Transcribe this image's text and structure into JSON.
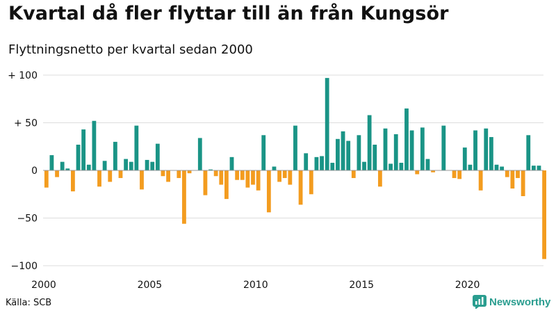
{
  "title": "Kvartal då fler flyttar till än från Kungsör",
  "subtitle": "Flyttningsnetto per kvartal sedan 2000",
  "source": "Källa: SCB",
  "brand": {
    "name": "Newsworthy",
    "icon": "newsworthy-logo-icon"
  },
  "colors": {
    "positive": "#1a9486",
    "negative": "#f39c1f",
    "grid": "#dddddd",
    "zero": "#999999",
    "brand": "#2a9d8f"
  },
  "chart_data": {
    "type": "bar",
    "title": "Kvartal då fler flyttar till än från Kungsör",
    "subtitle": "Flyttningsnetto per kvartal sedan 2000",
    "start_year": 2000,
    "periods_per_year": 4,
    "ylim": [
      -100,
      100
    ],
    "y_ticks": [
      {
        "value": 100,
        "label": "+ 100"
      },
      {
        "value": 50,
        "label": "+  50"
      },
      {
        "value": 0,
        "label": "0"
      },
      {
        "value": -50,
        "label": "−50"
      },
      {
        "value": -100,
        "label": "−100"
      }
    ],
    "x_ticks": [
      {
        "year": 2000,
        "label": "2000"
      },
      {
        "year": 2005,
        "label": "2005"
      },
      {
        "year": 2010,
        "label": "2010"
      },
      {
        "year": 2015,
        "label": "2015"
      },
      {
        "year": 2020,
        "label": "2020"
      }
    ],
    "grid": true,
    "legend": "none",
    "values": [
      -18,
      16,
      -7,
      9,
      2,
      -22,
      27,
      43,
      6,
      52,
      -17,
      10,
      -12,
      30,
      -8,
      12,
      9,
      47,
      -20,
      11,
      9,
      28,
      -6,
      -12,
      0,
      -8,
      -56,
      -3,
      0,
      34,
      -26,
      1,
      -6,
      -15,
      -30,
      14,
      -10,
      -10,
      -18,
      -15,
      -21,
      37,
      -44,
      4,
      -12,
      -8,
      -15,
      47,
      -36,
      18,
      -25,
      14,
      15,
      97,
      8,
      33,
      41,
      31,
      -8,
      37,
      9,
      58,
      27,
      -17,
      44,
      7,
      38,
      8,
      65,
      42,
      -4,
      45,
      12,
      -2,
      0,
      47,
      0,
      -8,
      -9,
      24,
      6,
      42,
      -21,
      44,
      35,
      6,
      4,
      -7,
      -19,
      -8,
      -27,
      37,
      5,
      5,
      -93
    ]
  }
}
